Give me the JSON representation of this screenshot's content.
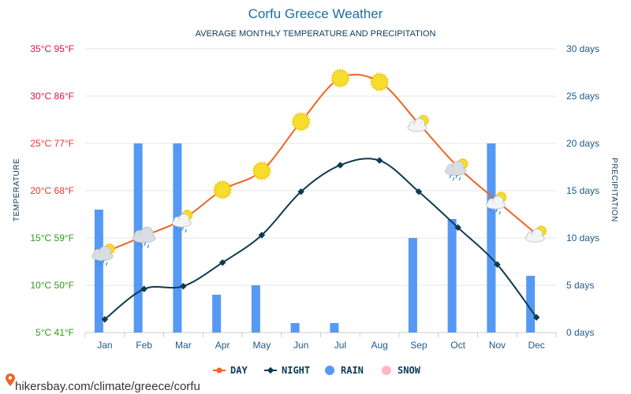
{
  "colors": {
    "title": "#1e6ea1",
    "day": "#f26322",
    "night": "#0d3b4e",
    "rain": "#5599f5",
    "snow": "#ffb6c8",
    "grid": "#e6e6e6",
    "hot_tick": "#e0104a",
    "warm_tick": "#ee3333",
    "mild_tick": "#2c9e1a",
    "days_tick": "#1e5a8a"
  },
  "legend": [
    {
      "label": "DAY",
      "key": "day",
      "marker": "line-dot"
    },
    {
      "label": "NIGHT",
      "key": "night",
      "marker": "line-diamond"
    },
    {
      "label": "RAIN",
      "key": "rain",
      "marker": "circle"
    },
    {
      "label": "SNOW",
      "key": "snow",
      "marker": "circle"
    }
  ],
  "source_label": "hikersbay.com/climate/greece/corfu",
  "source_icon": "location-pin-icon",
  "chart_data": {
    "type": "line",
    "title": "Corfu Greece Weather",
    "subtitle": "AVERAGE MONTHLY TEMPERATURE AND PRECIPITATION",
    "xlabel": "",
    "ylabel_left": "TEMPERATURE",
    "ylabel_right": "PRECIPITATION",
    "categories": [
      "Jan",
      "Feb",
      "Mar",
      "Apr",
      "May",
      "Jun",
      "Jul",
      "Aug",
      "Sep",
      "Oct",
      "Nov",
      "Dec"
    ],
    "y_left": {
      "unit": "°C",
      "ylim": [
        5,
        35
      ],
      "ticks": [
        {
          "value": 35,
          "label": "35°C 95°F",
          "color": "#e0104a"
        },
        {
          "value": 30,
          "label": "30°C 86°F",
          "color": "#e0104a"
        },
        {
          "value": 25,
          "label": "25°C 77°F",
          "color": "#ee3333"
        },
        {
          "value": 20,
          "label": "20°C 68°F",
          "color": "#ee3333"
        },
        {
          "value": 15,
          "label": "15°C 59°F",
          "color": "#2c9e1a"
        },
        {
          "value": 10,
          "label": "10°C 50°F",
          "color": "#2c9e1a"
        },
        {
          "value": 5,
          "label": "5°C 41°F",
          "color": "#2c9e1a"
        }
      ]
    },
    "y_right": {
      "unit": "days",
      "ylim": [
        0,
        30
      ],
      "ticks": [
        {
          "value": 30,
          "label": "30 days"
        },
        {
          "value": 25,
          "label": "25 days"
        },
        {
          "value": 20,
          "label": "20 days"
        },
        {
          "value": 15,
          "label": "15 days"
        },
        {
          "value": 10,
          "label": "10 days"
        },
        {
          "value": 5,
          "label": "5 days"
        },
        {
          "value": 0,
          "label": "0 days"
        }
      ]
    },
    "grid": true,
    "series": [
      {
        "name": "DAY",
        "axis": "left",
        "type": "line",
        "values": [
          13.5,
          15.2,
          17.0,
          20.1,
          22.1,
          27.3,
          31.9,
          31.5,
          27.1,
          22.5,
          18.9,
          15.4
        ],
        "icons": [
          "rain-sun-icon",
          "rain-cloud-icon",
          "cloud-sun-icon",
          "sun-icon",
          "sun-icon",
          "sun-icon",
          "sun-icon",
          "sun-icon",
          "partly-cloudy-icon",
          "rain-sun-icon",
          "cloud-sun-icon",
          "partly-cloudy-icon"
        ]
      },
      {
        "name": "NIGHT",
        "axis": "left",
        "type": "line",
        "values": [
          6.4,
          9.6,
          9.9,
          12.4,
          15.3,
          19.9,
          22.7,
          23.2,
          19.9,
          16.1,
          12.2,
          6.6
        ]
      },
      {
        "name": "RAIN",
        "axis": "right",
        "type": "bar",
        "values": [
          13,
          20,
          20,
          4,
          5,
          1,
          1,
          0,
          10,
          12,
          20,
          6
        ]
      },
      {
        "name": "SNOW",
        "axis": "right",
        "type": "bar",
        "values": [
          0,
          0,
          0,
          0,
          0,
          0,
          0,
          0,
          0,
          0,
          0,
          0
        ]
      }
    ]
  }
}
